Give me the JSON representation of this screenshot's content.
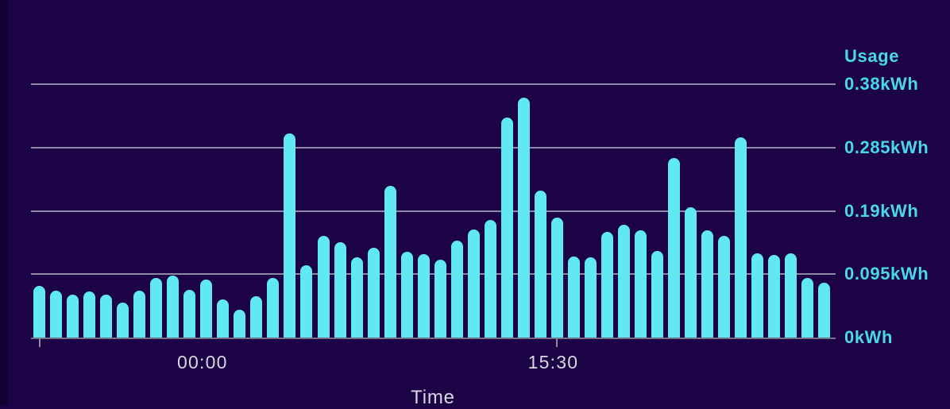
{
  "page": {
    "background_color": "#1c0346",
    "edge_strip_color": "#10012f"
  },
  "chart_data": {
    "type": "bar",
    "title": "",
    "y_axis_title": "Usage",
    "x_axis_title": "Time",
    "unit": "kWh",
    "ylim": [
      0,
      0.38
    ],
    "grid": true,
    "legend": false,
    "bar_color": "#61e9f3",
    "gridline_color": "#8d88a4",
    "baseline_color": "#767086",
    "y_label_color": "#49d7ea",
    "x_label_color": "#d9d6e4",
    "y_ticks": [
      {
        "value": 0,
        "label": "0kWh"
      },
      {
        "value": 0.095,
        "label": "0.095kWh"
      },
      {
        "value": 0.19,
        "label": "0.19kWh"
      },
      {
        "value": 0.285,
        "label": "0.285kWh"
      },
      {
        "value": 0.38,
        "label": "0.38kWh"
      }
    ],
    "x_ticks": [
      {
        "label": "00:00",
        "bar_index": 10
      },
      {
        "label": "15:30",
        "bar_index": 31
      }
    ],
    "tick_marks_at_bar_index": [
      0,
      31
    ],
    "values": [
      0.077,
      0.07,
      0.064,
      0.069,
      0.064,
      0.052,
      0.07,
      0.089,
      0.093,
      0.071,
      0.087,
      0.057,
      0.042,
      0.062,
      0.089,
      0.306,
      0.108,
      0.152,
      0.143,
      0.12,
      0.135,
      0.227,
      0.129,
      0.125,
      0.117,
      0.145,
      0.162,
      0.176,
      0.33,
      0.36,
      0.22,
      0.18,
      0.121,
      0.12,
      0.158,
      0.169,
      0.161,
      0.13,
      0.269,
      0.195,
      0.161,
      0.152,
      0.3,
      0.126,
      0.124,
      0.126,
      0.089,
      0.082
    ]
  }
}
